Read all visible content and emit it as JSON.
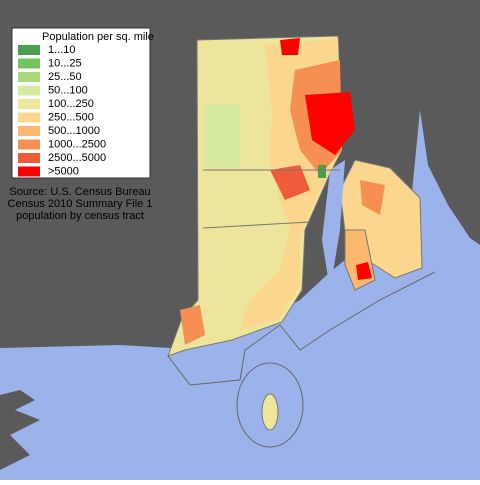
{
  "legend": {
    "title": "Population per sq. mile",
    "items": [
      {
        "label": "1...10",
        "color": "#4aa04a"
      },
      {
        "label": "10...25",
        "color": "#72c462"
      },
      {
        "label": "25...50",
        "color": "#a9d97a"
      },
      {
        "label": "50...100",
        "color": "#d6eba0"
      },
      {
        "label": "100...250",
        "color": "#efe89c"
      },
      {
        "label": "250...500",
        "color": "#fbd68e"
      },
      {
        "label": "500...1000",
        "color": "#fbb86e"
      },
      {
        "label": "1000...2500",
        "color": "#f68f52"
      },
      {
        "label": "2500...5000",
        "color": "#ee5c3c"
      },
      {
        "label": ">5000",
        "color": "#ff0000"
      }
    ]
  },
  "source": [
    "Source: U.S. Census Bureau",
    "Census 2010 Summary File 1",
    "population by census tract"
  ]
}
